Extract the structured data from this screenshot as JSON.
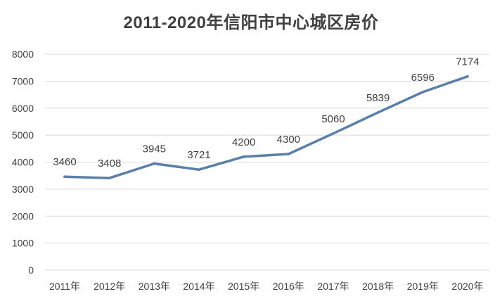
{
  "chart_data": {
    "type": "line",
    "title": "2011-2020年信阳市中心城区房价",
    "xlabel": "",
    "ylabel": "",
    "categories": [
      "2011年",
      "2012年",
      "2013年",
      "2014年",
      "2015年",
      "2016年",
      "2017年",
      "2018年",
      "2019年",
      "2020年"
    ],
    "series": [
      {
        "name": "房价",
        "values": [
          3460,
          3408,
          3945,
          3721,
          4200,
          4300,
          5060,
          5839,
          6596,
          7174
        ],
        "color": "#5B7FA8"
      }
    ],
    "ylim": [
      0,
      8000
    ],
    "yticks": [
      0,
      1000,
      2000,
      3000,
      4000,
      5000,
      6000,
      7000,
      8000
    ],
    "grid": true,
    "gridColor": "#d9d9d9",
    "legend": "none",
    "data_labels": true
  }
}
